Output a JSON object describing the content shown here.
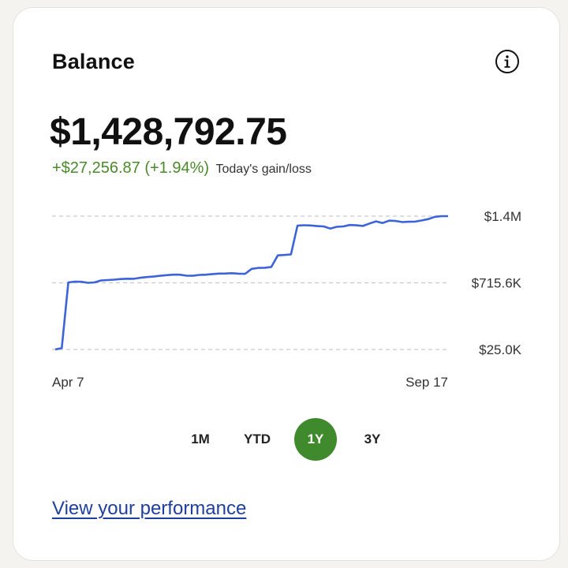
{
  "card": {
    "title": "Balance",
    "info_icon": "info-circle-icon",
    "balance": "$1,428,792.75",
    "gain_value": "+$27,256.87 (+1.94%)",
    "gain_label": "Today's gain/loss",
    "gain_color": "#4a8a2a"
  },
  "chart_data": {
    "type": "line",
    "x_start_label": "Apr 7",
    "x_end_label": "Sep 17",
    "y_tick_labels": [
      "$1.4M",
      "$715.6K",
      "$25.0K"
    ],
    "y_ticks": [
      1406200,
      715600,
      25000
    ],
    "ylim": [
      25000,
      1406200
    ],
    "grid": true,
    "line_color": "#3d63d9",
    "series": [
      {
        "values": [
          25000,
          40000,
          720000,
          728000,
          726000,
          716000,
          720000,
          740000,
          744000,
          748000,
          755000,
          758000,
          757000,
          768000,
          775000,
          780000,
          788000,
          795000,
          800000,
          800000,
          790000,
          788000,
          797000,
          800000,
          806000,
          811000,
          812000,
          815000,
          810000,
          809000,
          860000,
          870000,
          872000,
          880000,
          1000000,
          1004000,
          1010000,
          1308000,
          1312000,
          1310000,
          1303000,
          1300000,
          1278000,
          1296000,
          1300000,
          1315000,
          1311000,
          1305000,
          1330000,
          1352000,
          1335000,
          1360000,
          1356000,
          1345000,
          1348000,
          1350000,
          1362000,
          1376000,
          1400000,
          1406200,
          1406000
        ]
      }
    ]
  },
  "periods": {
    "items": [
      "1M",
      "YTD",
      "1Y",
      "3Y"
    ],
    "active": "1Y",
    "active_color": "#3f8a2d"
  },
  "footer": {
    "link_label": "View your performance"
  }
}
